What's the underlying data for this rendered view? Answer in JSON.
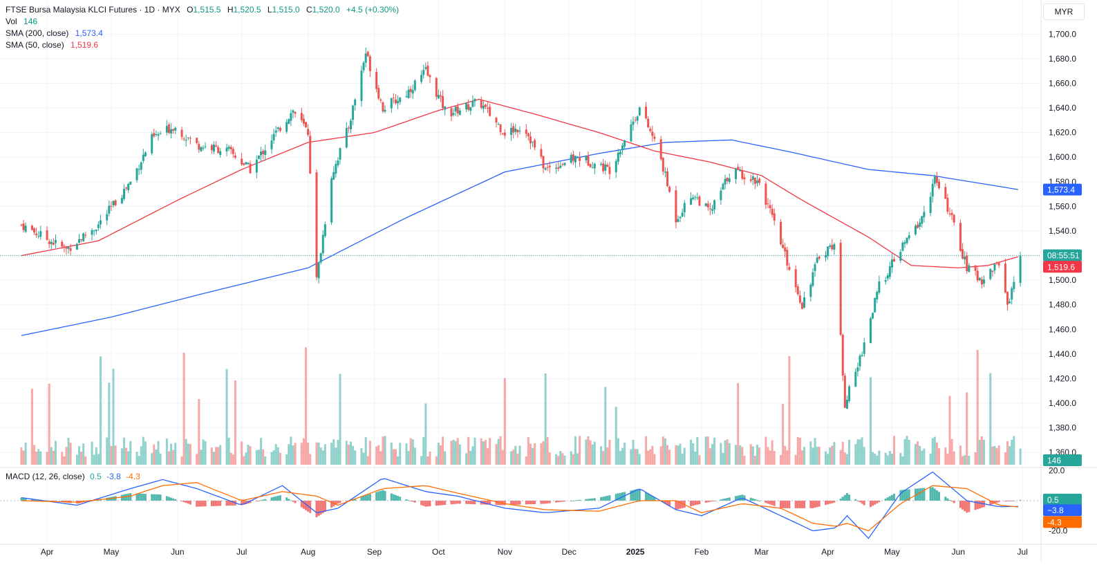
{
  "header": {
    "symbol_line": "FTSE Bursa Malaysia KLCI Futures · 1D · MYX",
    "open_label": "O",
    "open": "1,515.5",
    "high_label": "H",
    "high": "1,520.5",
    "low_label": "L",
    "low": "1,515.0",
    "close_label": "C",
    "close": "1,520.0",
    "change": "+4.5 (+0.30%)"
  },
  "indicators": {
    "vol_label": "Vol",
    "vol_value": "146",
    "sma200_label": "SMA (200, close)",
    "sma200_value": "1,573.4",
    "sma50_label": "SMA (50, close)",
    "sma50_value": "1,519.6",
    "macd_label": "MACD (12, 26, close)",
    "macd_hist": "0.5",
    "macd_line": "-3.8",
    "macd_signal": "-4.3"
  },
  "price_axis": {
    "currency": "MYR",
    "ticks": [
      "1,700.0",
      "1,680.0",
      "1,660.0",
      "1,640.0",
      "1,620.0",
      "1,600.0",
      "1,580.0",
      "1,560.0",
      "1,540.0",
      "1,520.0",
      "1,500.0",
      "1,480.0",
      "1,460.0",
      "1,440.0",
      "1,420.0",
      "1,400.0",
      "1,380.0",
      "1,360.0"
    ],
    "countdown": "08:55:51",
    "sma200_tag": "1,573.4",
    "sma50_tag": "1,519.6",
    "vol_tag": "146",
    "macd_ticks": [
      "20.0",
      "-20.0"
    ],
    "macd_tags": [
      "0.5",
      "−3.8",
      "-4.3"
    ]
  },
  "time_axis": {
    "labels": [
      "Apr",
      "May",
      "Jun",
      "Jul",
      "Aug",
      "Sep",
      "Oct",
      "Nov",
      "Dec",
      "2025",
      "Feb",
      "Mar",
      "Apr",
      "May",
      "Jun",
      "Jul"
    ]
  },
  "colors": {
    "up": "#26a69a",
    "down": "#ef5350",
    "sma200": "#2962ff",
    "sma50": "#f23645",
    "macd_line": "#2962ff",
    "macd_signal": "#ff6d00",
    "grid": "#f0f3fa",
    "axis_text": "#131722"
  },
  "chart_data": {
    "type": "candlestick",
    "x_range": [
      "2024-03",
      "2025-07"
    ],
    "y_range": [
      1350,
      1710
    ],
    "macd_y_range": [
      -28,
      22
    ],
    "price_anchors": [
      [
        "2024-03-20",
        1545
      ],
      [
        "2024-04-10",
        1525
      ],
      [
        "2024-04-25",
        1545
      ],
      [
        "2024-05-10",
        1580
      ],
      [
        "2024-05-20",
        1615
      ],
      [
        "2024-05-30",
        1625
      ],
      [
        "2024-06-10",
        1610
      ],
      [
        "2024-06-25",
        1605
      ],
      [
        "2024-07-05",
        1590
      ],
      [
        "2024-07-15",
        1615
      ],
      [
        "2024-07-25",
        1638
      ],
      [
        "2024-08-01",
        1620
      ],
      [
        "2024-08-05",
        1500
      ],
      [
        "2024-08-12",
        1585
      ],
      [
        "2024-08-20",
        1625
      ],
      [
        "2024-08-28",
        1685
      ],
      [
        "2024-09-05",
        1640
      ],
      [
        "2024-09-15",
        1650
      ],
      [
        "2024-09-25",
        1670
      ],
      [
        "2024-10-05",
        1635
      ],
      [
        "2024-10-20",
        1645
      ],
      [
        "2024-11-01",
        1620
      ],
      [
        "2024-11-10",
        1625
      ],
      [
        "2024-11-20",
        1590
      ],
      [
        "2024-12-05",
        1600
      ],
      [
        "2024-12-20",
        1590
      ],
      [
        "2025-01-03",
        1640
      ],
      [
        "2025-01-12",
        1605
      ],
      [
        "2025-01-20",
        1550
      ],
      [
        "2025-01-28",
        1570
      ],
      [
        "2025-02-05",
        1555
      ],
      [
        "2025-02-15",
        1590
      ],
      [
        "2025-02-28",
        1580
      ],
      [
        "2025-03-10",
        1530
      ],
      [
        "2025-03-20",
        1480
      ],
      [
        "2025-03-28",
        1520
      ],
      [
        "2025-04-04",
        1530
      ],
      [
        "2025-04-09",
        1400
      ],
      [
        "2025-04-15",
        1430
      ],
      [
        "2025-04-25",
        1495
      ],
      [
        "2025-05-05",
        1525
      ],
      [
        "2025-05-15",
        1550
      ],
      [
        "2025-05-21",
        1582
      ],
      [
        "2025-05-28",
        1555
      ],
      [
        "2025-06-05",
        1510
      ],
      [
        "2025-06-12",
        1500
      ],
      [
        "2025-06-20",
        1515
      ],
      [
        "2025-06-24",
        1480
      ],
      [
        "2025-06-30",
        1520
      ]
    ],
    "sma50_anchors": [
      [
        "2024-03-20",
        1520
      ],
      [
        "2024-04-25",
        1532
      ],
      [
        "2024-06-01",
        1565
      ],
      [
        "2024-07-01",
        1590
      ],
      [
        "2024-08-01",
        1612
      ],
      [
        "2024-09-01",
        1620
      ],
      [
        "2024-10-01",
        1638
      ],
      [
        "2024-10-20",
        1647
      ],
      [
        "2024-11-15",
        1635
      ],
      [
        "2024-12-15",
        1620
      ],
      [
        "2025-01-10",
        1605
      ],
      [
        "2025-02-05",
        1596
      ],
      [
        "2025-03-01",
        1585
      ],
      [
        "2025-03-20",
        1565
      ],
      [
        "2025-04-20",
        1535
      ],
      [
        "2025-05-10",
        1512
      ],
      [
        "2025-06-01",
        1510
      ],
      [
        "2025-06-15",
        1512
      ],
      [
        "2025-06-30",
        1519.6
      ]
    ],
    "sma200_anchors": [
      [
        "2024-03-20",
        1455
      ],
      [
        "2024-05-01",
        1470
      ],
      [
        "2024-06-15",
        1490
      ],
      [
        "2024-08-01",
        1510
      ],
      [
        "2024-09-15",
        1550
      ],
      [
        "2024-11-01",
        1588
      ],
      [
        "2024-12-15",
        1603
      ],
      [
        "2025-01-15",
        1612
      ],
      [
        "2025-02-15",
        1614
      ],
      [
        "2025-03-15",
        1604
      ],
      [
        "2025-04-20",
        1590
      ],
      [
        "2025-05-20",
        1585
      ],
      [
        "2025-06-30",
        1573.4
      ]
    ],
    "macd_anchors": [
      [
        "2024-03-20",
        2,
        0
      ],
      [
        "2024-04-15",
        -3,
        -1
      ],
      [
        "2024-05-10",
        8,
        3
      ],
      [
        "2024-05-25",
        14,
        10
      ],
      [
        "2024-06-10",
        8,
        12
      ],
      [
        "2024-07-01",
        -3,
        0
      ],
      [
        "2024-07-20",
        10,
        6
      ],
      [
        "2024-08-05",
        -8,
        3
      ],
      [
        "2024-08-15",
        -5,
        -3
      ],
      [
        "2024-09-05",
        15,
        8
      ],
      [
        "2024-09-25",
        6,
        10
      ],
      [
        "2024-10-10",
        3,
        5
      ],
      [
        "2024-11-01",
        -5,
        -2
      ],
      [
        "2024-11-20",
        -8,
        -6
      ],
      [
        "2024-12-15",
        -5,
        -7
      ],
      [
        "2025-01-03",
        8,
        0
      ],
      [
        "2025-01-20",
        -6,
        0
      ],
      [
        "2025-02-01",
        -10,
        -8
      ],
      [
        "2025-02-20",
        2,
        -2
      ],
      [
        "2025-03-10",
        -10,
        -5
      ],
      [
        "2025-03-25",
        -20,
        -15
      ],
      [
        "2025-04-05",
        -18,
        -17
      ],
      [
        "2025-04-10",
        -10,
        -15
      ],
      [
        "2025-04-20",
        -25,
        -20
      ],
      [
        "2025-05-05",
        5,
        -2
      ],
      [
        "2025-05-20",
        19,
        10
      ],
      [
        "2025-06-05",
        0,
        8
      ],
      [
        "2025-06-20",
        -4,
        -3
      ],
      [
        "2025-06-30",
        -3.8,
        -4.3
      ]
    ],
    "last_close": 1520.0
  }
}
